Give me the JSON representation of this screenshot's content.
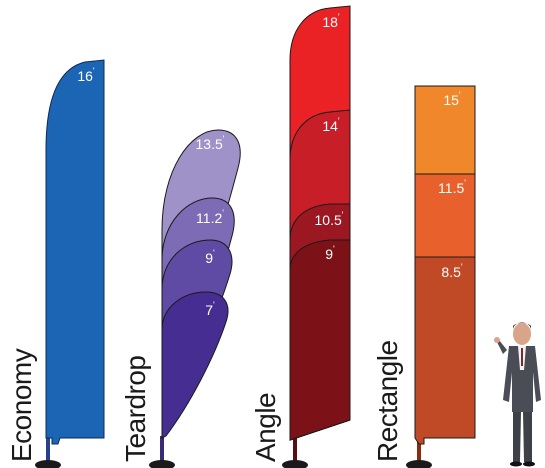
{
  "flags": {
    "economy": {
      "label": "Economy",
      "sizes": [
        "16"
      ],
      "colors": [
        "#1c64b4"
      ]
    },
    "teardrop": {
      "label": "Teardrop",
      "sizes": [
        "13.5",
        "11.2",
        "9",
        "7"
      ],
      "colors": [
        "#9f92c8",
        "#7d6bb6",
        "#5f4aa4",
        "#462d92"
      ]
    },
    "angle": {
      "label": "Angle",
      "sizes": [
        "18",
        "14",
        "10.5",
        "9"
      ],
      "colors": [
        "#ea2226",
        "#c81e27",
        "#9b1722",
        "#7d1118"
      ]
    },
    "rectangle": {
      "label": "Rectangle",
      "sizes": [
        "15",
        "11.5",
        "8.5"
      ],
      "colors": [
        "#f0872a",
        "#e8612c",
        "#c14a26"
      ]
    }
  },
  "size_unit_mark": "'",
  "pole_color": "#2a3f8f",
  "base_color": "#1a1a1a",
  "person_image": "businessman-standing"
}
